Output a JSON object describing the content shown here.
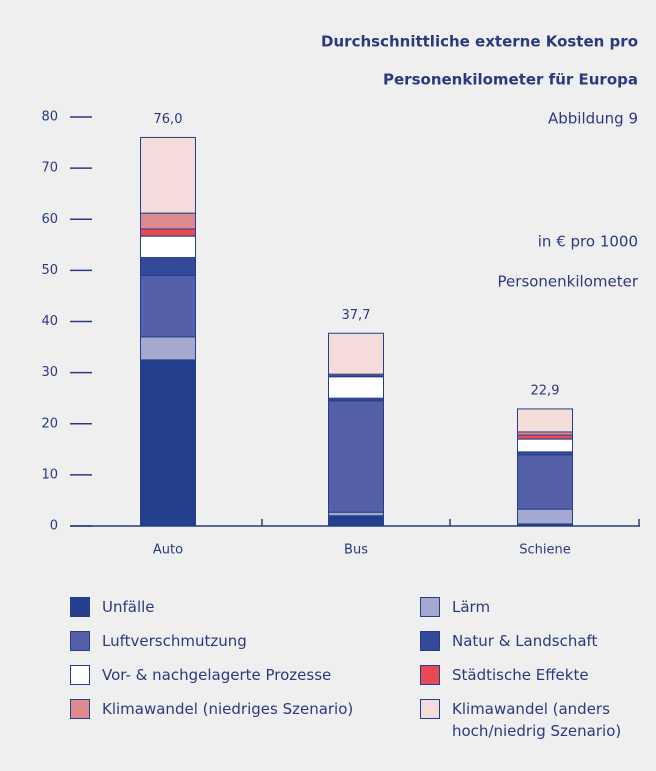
{
  "chart_data": {
    "type": "stacked_bar",
    "title": [
      "Durchschnittliche externe Kosten pro",
      "Personenkilometer für Europa"
    ],
    "subtitle": "Abbildung 9",
    "unit_note": [
      "in € pro 1000",
      "Personenkilometer"
    ],
    "categories": [
      "Auto",
      "Bus",
      "Schiene"
    ],
    "series": [
      {
        "name": "Unfälle",
        "color": "#243f8c",
        "values": [
          32.5,
          2.0,
          0.4
        ]
      },
      {
        "name": "Lärm",
        "color": "#a5a9d0",
        "values": [
          4.5,
          0.7,
          2.9
        ]
      },
      {
        "name": "Luftverschmutzung",
        "color": "#5560a8",
        "values": [
          12.0,
          21.8,
          10.6
        ]
      },
      {
        "name": "Natur & Landschaft",
        "color": "#34499a",
        "values": [
          3.5,
          0.5,
          0.6
        ]
      },
      {
        "name": "Vor- & nachgelagerte Prozesse",
        "color": "#ffffff",
        "values": [
          4.2,
          4.2,
          2.5
        ]
      },
      {
        "name": "Städtische Effekte",
        "color": "#e84a55",
        "values": [
          1.4,
          0.2,
          0.8
        ]
      },
      {
        "name": "Klimawandel (niedriges Szenario)",
        "color": "#dd8a8e",
        "values": [
          3.1,
          0.3,
          0.6
        ]
      },
      {
        "name": "Klimawandel (anders hoch/niedrig Szenario)",
        "color": "#f3dcd9",
        "values": [
          14.8,
          8.0,
          4.5
        ]
      }
    ],
    "totals": [
      76.0,
      37.7,
      22.9
    ],
    "total_labels": [
      "76,0",
      "37,7",
      "22,9"
    ],
    "ylim": [
      0,
      80
    ],
    "yticks": [
      0,
      10,
      20,
      30,
      40,
      50,
      60,
      70,
      80
    ]
  }
}
